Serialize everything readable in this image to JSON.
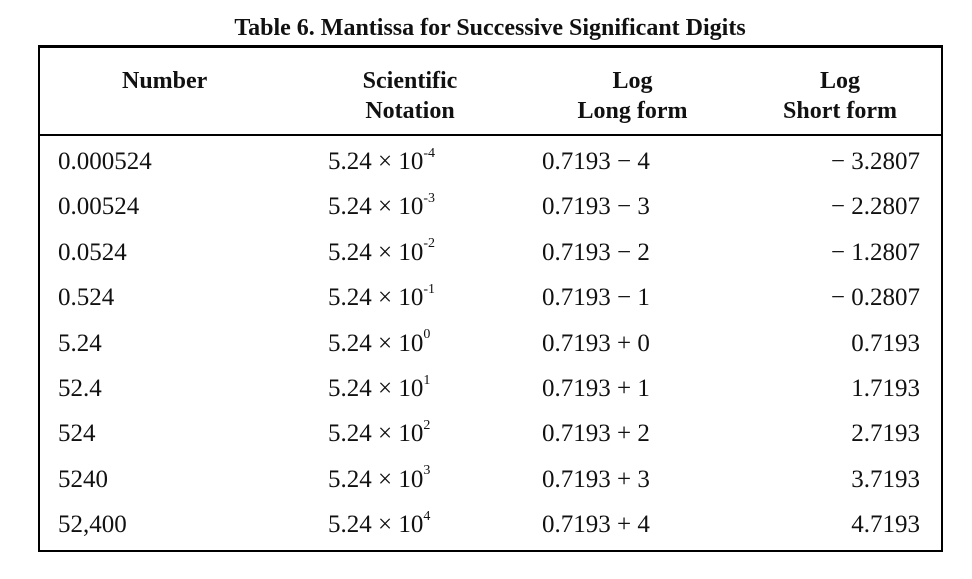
{
  "caption": "Table 6.  Mantissa for Successive Significant Digits",
  "headers": {
    "number": [
      "Number"
    ],
    "scientific": [
      "Scientific",
      "Notation"
    ],
    "log_long": [
      "Log",
      "Long form"
    ],
    "log_short": [
      "Log",
      "Short form"
    ]
  },
  "rows": [
    {
      "number": "0.000524",
      "sci_base": "5.24 × 10",
      "sci_exp": "-4",
      "log_long": "0.7193 − 4",
      "log_short": "− 3.2807"
    },
    {
      "number": "0.00524",
      "sci_base": "5.24 × 10",
      "sci_exp": "-3",
      "log_long": "0.7193 − 3",
      "log_short": "− 2.2807"
    },
    {
      "number": "0.0524",
      "sci_base": "5.24 × 10",
      "sci_exp": "-2",
      "log_long": "0.7193 − 2",
      "log_short": "− 1.2807"
    },
    {
      "number": "0.524",
      "sci_base": "5.24 × 10",
      "sci_exp": "-1",
      "log_long": "0.7193 − 1",
      "log_short": "− 0.2807"
    },
    {
      "number": "5.24",
      "sci_base": "5.24 × 10",
      "sci_exp": "0",
      "log_long": "0.7193 + 0",
      "log_short": "0.7193"
    },
    {
      "number": "52.4",
      "sci_base": "5.24 × 10",
      "sci_exp": "1",
      "log_long": "0.7193 + 1",
      "log_short": "1.7193"
    },
    {
      "number": "524",
      "sci_base": "5.24 × 10",
      "sci_exp": "2",
      "log_long": "0.7193 + 2",
      "log_short": "2.7193"
    },
    {
      "number": "5240",
      "sci_base": "5.24 × 10",
      "sci_exp": "3",
      "log_long": "0.7193 + 3",
      "log_short": "3.7193"
    },
    {
      "number": "52,400",
      "sci_base": "5.24 × 10",
      "sci_exp": "4",
      "log_long": "0.7193 + 4",
      "log_short": "4.7193"
    }
  ]
}
